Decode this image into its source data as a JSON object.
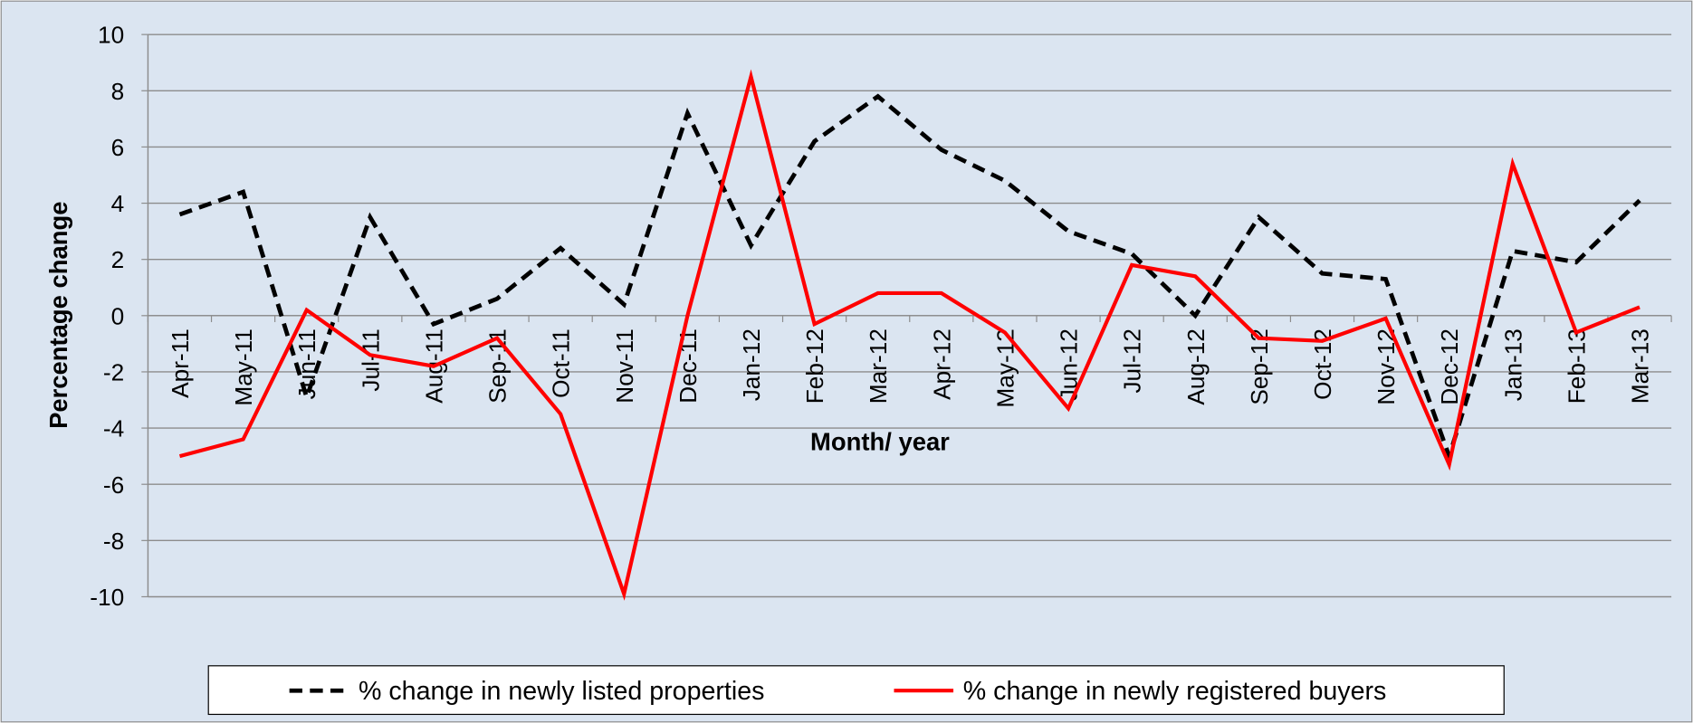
{
  "chart_data": {
    "type": "line",
    "x_label": "Month/ year",
    "y_label": "Percentage change",
    "categories": [
      "Apr-11",
      "May-11",
      "Jun-11",
      "Jul-11",
      "Aug-11",
      "Sep-11",
      "Oct-11",
      "Nov-11",
      "Dec-11",
      "Jan-12",
      "Feb-12",
      "Mar-12",
      "Apr-12",
      "May-12",
      "Jun-12",
      "Jul-12",
      "Aug-12",
      "Sep-12",
      "Oct-12",
      "Nov-12",
      "Dec-12",
      "Jan-13",
      "Feb-13",
      "Mar-13"
    ],
    "series": [
      {
        "name": "% change in newly listed properties",
        "color": "#000000",
        "linestyle": "dashed",
        "values": [
          3.6,
          4.4,
          -2.9,
          3.5,
          -0.3,
          0.6,
          2.4,
          0.4,
          7.2,
          2.5,
          6.2,
          7.8,
          5.9,
          4.8,
          3.0,
          2.2,
          0.0,
          3.5,
          1.5,
          1.3,
          -5.0,
          2.3,
          1.9,
          4.1
        ]
      },
      {
        "name": "% change in newly registered buyers",
        "color": "#ff0000",
        "linestyle": "solid",
        "values": [
          -5.0,
          -4.4,
          0.2,
          -1.4,
          -1.8,
          -0.8,
          -3.5,
          -9.9,
          0.0,
          8.5,
          -0.3,
          0.8,
          0.8,
          -0.6,
          -3.3,
          1.8,
          1.4,
          -0.8,
          -0.9,
          -0.1,
          -5.3,
          5.4,
          -0.6,
          0.3
        ]
      }
    ],
    "ylim": [
      -10,
      10
    ],
    "yticks": [
      -10,
      -8,
      -6,
      -4,
      -2,
      0,
      2,
      4,
      6,
      8,
      10
    ],
    "grid": true,
    "legend": "bottom"
  }
}
